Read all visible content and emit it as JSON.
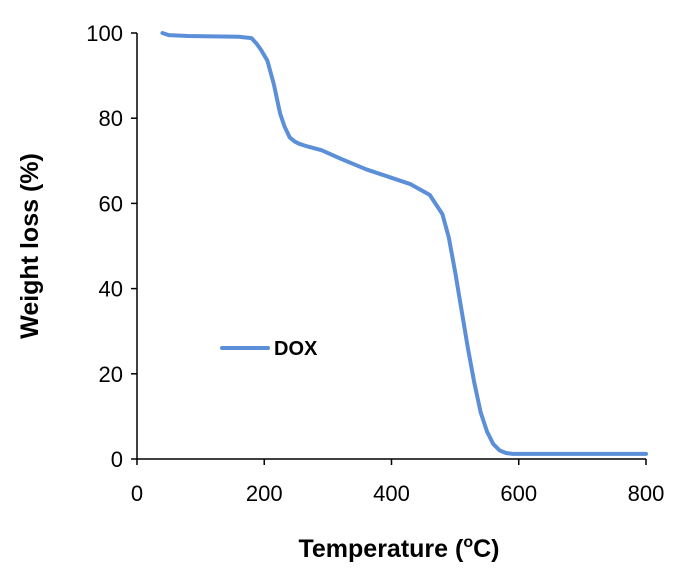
{
  "chart_data": {
    "type": "line",
    "xlabel": "Temperature (",
    "xlabel_sup": "o",
    "xlabel_end": "C)",
    "ylabel": "Weight loss (%)",
    "xlim": [
      0,
      800
    ],
    "ylim": [
      0,
      100
    ],
    "xticks": [
      0,
      200,
      400,
      600,
      800
    ],
    "yticks": [
      0,
      20,
      40,
      60,
      80,
      100
    ],
    "grid": false,
    "legend_position": "middle-left",
    "series": [
      {
        "name": "DOX",
        "color": "#5b8fd8",
        "x": [
          40,
          50,
          80,
          120,
          160,
          180,
          188,
          195,
          205,
          215,
          225,
          232,
          240,
          248,
          255,
          265,
          290,
          320,
          360,
          400,
          430,
          460,
          480,
          490,
          500,
          510,
          520,
          530,
          540,
          550,
          560,
          570,
          580,
          590,
          600,
          650,
          700,
          750,
          800
        ],
        "y": [
          100,
          99.5,
          99.3,
          99.2,
          99.1,
          98.8,
          97.5,
          96,
          93.5,
          88,
          81,
          78,
          75.5,
          74.5,
          74,
          73.5,
          72.5,
          70.5,
          68,
          66,
          64.5,
          62,
          57.5,
          52,
          44,
          35,
          26,
          18,
          11,
          6.5,
          3.5,
          2,
          1.4,
          1.2,
          1.2,
          1.2,
          1.2,
          1.2,
          1.2
        ]
      }
    ]
  }
}
